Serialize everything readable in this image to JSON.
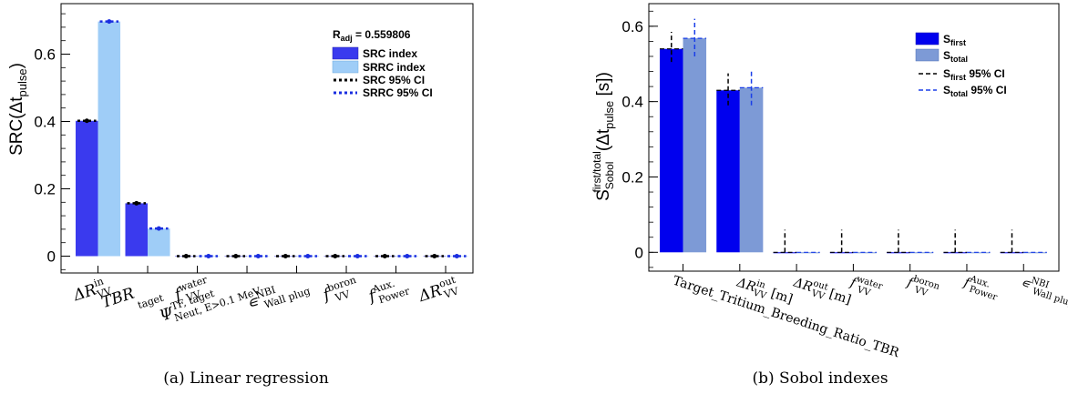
{
  "chart_data": [
    {
      "type": "bar",
      "caption": "(a) Linear regression",
      "ylabel": "SRC(Δt_pulse)",
      "ylim": [
        -0.05,
        0.75
      ],
      "yticks": [
        "0",
        "0.2",
        "0.4",
        "0.6"
      ],
      "categories": [
        "ΔR_VV^in",
        "TBR_taget",
        "f_VV^water",
        "Ψ^TF, taget_Neut, E>0.1 MeV",
        "∊^NBI_Wall plug",
        "f_VV^boron",
        "f^Aux._Power",
        "ΔR_VV^out"
      ],
      "series": [
        {
          "name": "SRC index",
          "values": [
            0.402,
            0.157,
            0.0,
            0.0,
            0.0,
            0.0,
            0.0,
            0.0
          ],
          "ci": [
            0.004,
            0.004,
            0.002,
            0.002,
            0.002,
            0.002,
            0.002,
            0.002
          ]
        },
        {
          "name": "SRRC index",
          "values": [
            0.697,
            0.082,
            0.0,
            0.0,
            0.0,
            0.0,
            0.0,
            0.0
          ],
          "ci": [
            0.004,
            0.004,
            0.002,
            0.002,
            0.002,
            0.002,
            0.002,
            0.002
          ]
        }
      ],
      "legend_ci": [
        "SRC 95% CI",
        "SRRC 95% CI"
      ],
      "annotation": "R_adj = 0.559806",
      "colors": {
        "series1": "#3a3aee",
        "series2": "#9fcdf7",
        "ci1": "#000000",
        "ci2": "#1a2ee0"
      }
    },
    {
      "type": "bar",
      "caption": "(b) Sobol indexes",
      "ylabel": "S_Sobol^first/total(Δt_pulse [s])",
      "ylim": [
        -0.05,
        0.66
      ],
      "yticks": [
        "0",
        "0.2",
        "0.4",
        "0.6"
      ],
      "categories": [
        "Target_Tritium_Breeding_Ratio_TBR",
        "ΔR_VV^in [m]",
        "ΔR_VV^out [m]",
        "f_VV^water",
        "f_VV^boron",
        "f^Aux._Power",
        "∊^NBI_Wall plug"
      ],
      "series": [
        {
          "name": "S_first",
          "values": [
            0.54,
            0.43,
            0.0,
            0.0,
            0.0,
            0.0,
            0.0
          ],
          "ci_low": [
            0.505,
            0.39,
            0.0,
            0.0,
            0.0,
            0.0,
            0.0
          ],
          "ci_high": [
            0.585,
            0.475,
            0.06,
            0.06,
            0.06,
            0.06,
            0.06
          ]
        },
        {
          "name": "S_total",
          "values": [
            0.568,
            0.437,
            0.0,
            0.0,
            0.0,
            0.0,
            0.0
          ],
          "ci_low": [
            0.52,
            0.39,
            0.0,
            0.0,
            0.0,
            0.0,
            0.0
          ],
          "ci_high": [
            0.62,
            0.48,
            0.0,
            0.0,
            0.0,
            0.0,
            0.0
          ]
        }
      ],
      "legend_ci": [
        "S_first 95% CI",
        "S_total 95% CI"
      ],
      "colors": {
        "series1": "#0000ee",
        "series2": "#7d9ad6",
        "ci1": "#000000",
        "ci2": "#1a3ee8"
      }
    }
  ]
}
